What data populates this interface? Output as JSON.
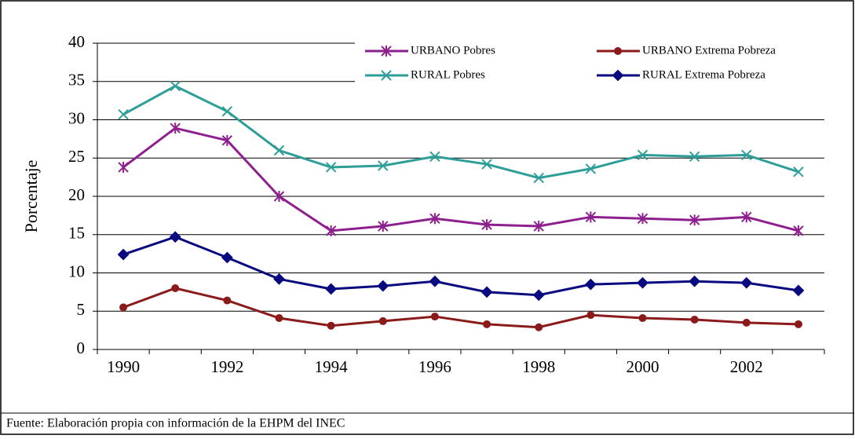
{
  "chart_data": {
    "type": "line",
    "y_label": "Porcentaje",
    "footnote": "Fuente: Elaboración propia con información de la EHPM del INEC",
    "categories": [
      "1990",
      null,
      "1992",
      null,
      "1994",
      null,
      "1996",
      null,
      "1998",
      null,
      "2000",
      null,
      "2002",
      null
    ],
    "ylim": [
      0,
      40
    ],
    "yticks": [
      0,
      5,
      10,
      15,
      20,
      25,
      30,
      35,
      40
    ],
    "grid": true,
    "series": [
      {
        "name": "URBANO Pobres",
        "color": "#8e1f8e",
        "marker": "star",
        "values": [
          23.8,
          28.9,
          27.3,
          20.0,
          15.5,
          16.1,
          17.1,
          16.3,
          16.1,
          17.3,
          17.1,
          16.9,
          17.3,
          15.5
        ]
      },
      {
        "name": "URBANO Extrema Pobreza",
        "color": "#8b1a1a",
        "marker": "circle",
        "values": [
          5.5,
          8.0,
          6.4,
          4.1,
          3.1,
          3.7,
          4.3,
          3.3,
          2.9,
          4.5,
          4.1,
          3.9,
          3.5,
          3.3
        ]
      },
      {
        "name": "RURAL Pobres",
        "color": "#2e9e98",
        "marker": "x",
        "values": [
          30.7,
          34.4,
          31.1,
          26.0,
          23.8,
          24.0,
          25.2,
          24.2,
          22.4,
          23.6,
          25.4,
          25.2,
          25.4,
          23.2
        ]
      },
      {
        "name": "RURAL Extrema Pobreza",
        "color": "#0a0a80",
        "marker": "diamond",
        "values": [
          12.4,
          14.7,
          12.0,
          9.2,
          7.9,
          8.3,
          8.9,
          7.5,
          7.1,
          8.5,
          8.7,
          8.9,
          8.7,
          7.7
        ]
      }
    ]
  }
}
